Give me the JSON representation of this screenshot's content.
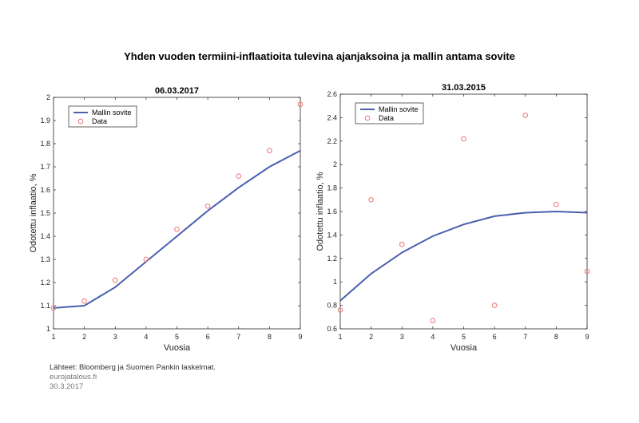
{
  "page": {
    "title": "Yhden vuoden termiini-inflaatioita tulevina ajanjaksoina ja mallin antama sovite",
    "source": "Lähteet: Bloomberg ja Suomen Pankin laskelmat.",
    "site": "eurojatalous.fi",
    "date": "30.3.2017"
  },
  "colors": {
    "fit_line": "#4a5fae",
    "data_marker": "#f08080"
  },
  "chart_data": [
    {
      "type": "line",
      "title": "06.03.2017",
      "xlabel": "Vuosia",
      "ylabel": "Odotettu inflaatio, %",
      "xlim": [
        1,
        9
      ],
      "ylim": [
        1,
        2
      ],
      "xticks": [
        1,
        2,
        3,
        4,
        5,
        6,
        7,
        8,
        9
      ],
      "yticks": [
        1,
        1.1,
        1.2,
        1.3,
        1.4,
        1.5,
        1.6,
        1.7,
        1.8,
        1.9,
        2
      ],
      "ytick_labels": [
        "1",
        "1.1",
        "1.2",
        "1.3",
        "1.4",
        "1.5",
        "1.6",
        "1.7",
        "1.8",
        "1.9",
        "2"
      ],
      "legend": {
        "position": "top-left",
        "entries": [
          "Mallin sovite",
          "Data"
        ]
      },
      "series": [
        {
          "name": "Mallin sovite",
          "kind": "line",
          "x": [
            1,
            2,
            3,
            4,
            5,
            6,
            7,
            8,
            9
          ],
          "y": [
            1.09,
            1.1,
            1.18,
            1.29,
            1.4,
            1.51,
            1.61,
            1.7,
            1.77
          ]
        },
        {
          "name": "Data",
          "kind": "scatter",
          "x": [
            1,
            2,
            3,
            4,
            5,
            6,
            7,
            8,
            9
          ],
          "y": [
            1.09,
            1.12,
            1.21,
            1.3,
            1.43,
            1.53,
            1.66,
            1.77,
            1.97
          ]
        }
      ]
    },
    {
      "type": "line",
      "title": "31.03.2015",
      "xlabel": "Vuosia",
      "ylabel": "Odotettu inflaatio, %",
      "xlim": [
        1,
        9
      ],
      "ylim": [
        0.6,
        2.6
      ],
      "xticks": [
        1,
        2,
        3,
        4,
        5,
        6,
        7,
        8,
        9
      ],
      "yticks": [
        0.6,
        0.8,
        1,
        1.2,
        1.4,
        1.6,
        1.8,
        2,
        2.2,
        2.4,
        2.6
      ],
      "ytick_labels": [
        "0.6",
        "0.8",
        "1",
        "1.2",
        "1.4",
        "1.6",
        "1.8",
        "2",
        "2.2",
        "2.4",
        "2.6"
      ],
      "legend": {
        "position": "top-left",
        "entries": [
          "Mallin sovite",
          "Data"
        ]
      },
      "series": [
        {
          "name": "Mallin sovite",
          "kind": "line",
          "x": [
            1,
            2,
            3,
            4,
            5,
            6,
            7,
            8,
            9
          ],
          "y": [
            0.84,
            1.07,
            1.25,
            1.39,
            1.49,
            1.56,
            1.59,
            1.6,
            1.59
          ]
        },
        {
          "name": "Data",
          "kind": "scatter",
          "x": [
            1,
            2,
            3,
            4,
            5,
            6,
            7,
            8,
            9
          ],
          "y": [
            0.76,
            1.7,
            1.32,
            0.67,
            2.22,
            0.8,
            2.42,
            1.66,
            1.09
          ]
        }
      ]
    }
  ]
}
